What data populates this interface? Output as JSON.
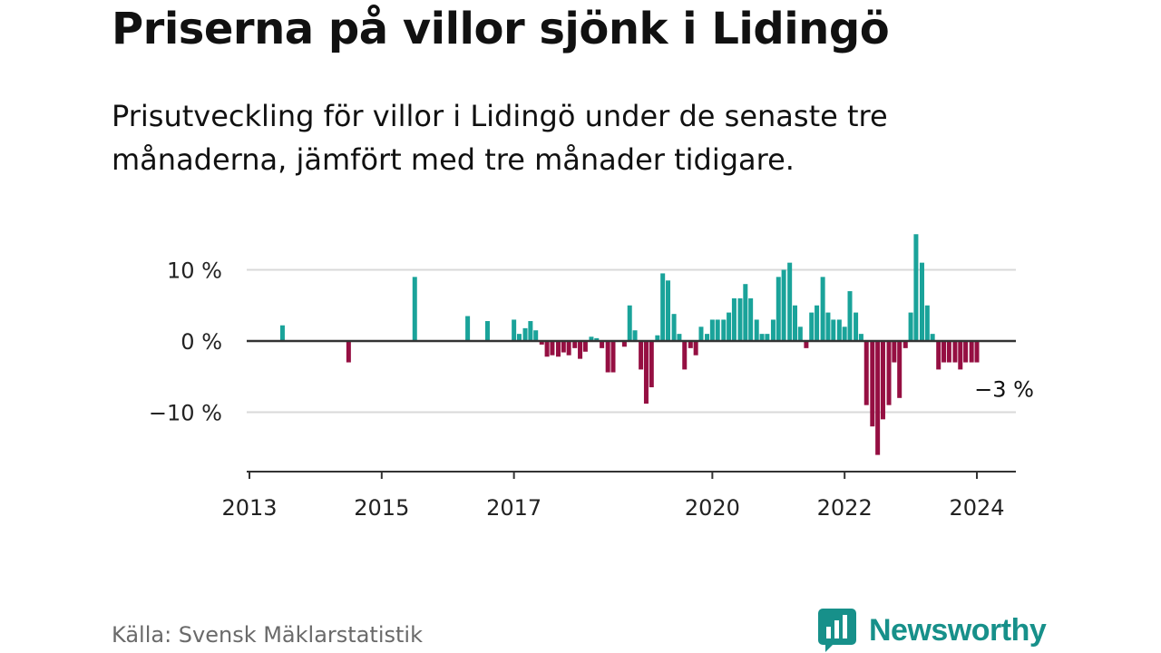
{
  "title": "Priserna på villor sjönk i Lidingö",
  "subtitle": "Prisutveckling för villor i Lidingö under de senaste tre månaderna, jämfört med tre månader tidigare.",
  "source": "Källa: Svensk Mäklarstatistik",
  "brand": "Newsworthy",
  "colors": {
    "positive": "#1aa39a",
    "negative": "#950f42",
    "grid": "#d9d9d9",
    "axis": "#333333",
    "brand": "#17908a"
  },
  "chart_data": {
    "type": "bar",
    "x_unit": "year (fractional)",
    "xlim": [
      2013,
      2024.6
    ],
    "ylim": [
      -16,
      15
    ],
    "yticks": [
      10,
      0,
      -10
    ],
    "ytick_labels": [
      "10 %",
      "0 %",
      "−10 %"
    ],
    "xticks": [
      2013,
      2015,
      2017,
      2020,
      2022,
      2024
    ],
    "xtick_labels": [
      "2013",
      "2015",
      "2017",
      "2020",
      "2022",
      "2024"
    ],
    "grid": true,
    "annotation": {
      "text": "−3 %",
      "x": 2024.0,
      "y": -3
    },
    "x": [
      2013.5,
      2014.5,
      2015.5,
      2016.3,
      2016.6,
      2017.0,
      2017.08,
      2017.17,
      2017.25,
      2017.33,
      2017.42,
      2017.5,
      2017.58,
      2017.67,
      2017.75,
      2017.83,
      2017.92,
      2018.0,
      2018.08,
      2018.17,
      2018.25,
      2018.33,
      2018.42,
      2018.5,
      2018.58,
      2018.67,
      2018.75,
      2018.83,
      2018.92,
      2019.0,
      2019.08,
      2019.17,
      2019.25,
      2019.33,
      2019.42,
      2019.5,
      2019.58,
      2019.67,
      2019.75,
      2019.83,
      2019.92,
      2020.0,
      2020.08,
      2020.17,
      2020.25,
      2020.33,
      2020.42,
      2020.5,
      2020.58,
      2020.67,
      2020.75,
      2020.83,
      2020.92,
      2021.0,
      2021.08,
      2021.17,
      2021.25,
      2021.33,
      2021.42,
      2021.5,
      2021.58,
      2021.67,
      2021.75,
      2021.83,
      2021.92,
      2022.0,
      2022.08,
      2022.17,
      2022.25,
      2022.33,
      2022.42,
      2022.5,
      2022.58,
      2022.67,
      2022.75,
      2022.83,
      2022.92,
      2023.0,
      2023.08,
      2023.17,
      2023.25,
      2023.33,
      2023.42,
      2023.5,
      2023.58,
      2023.67,
      2023.75,
      2023.83,
      2023.92,
      2024.0
    ],
    "values": [
      2.2,
      -3.0,
      9.0,
      3.5,
      2.8,
      3.0,
      1.0,
      1.8,
      2.8,
      1.5,
      -0.5,
      -2.2,
      -2.0,
      -2.2,
      -1.6,
      -2.0,
      -1.0,
      -2.5,
      -1.5,
      0.6,
      0.4,
      -1.0,
      -4.4,
      -4.4,
      0.0,
      -0.8,
      5.0,
      1.5,
      -4.0,
      -8.8,
      -6.5,
      0.8,
      9.5,
      8.5,
      3.8,
      1.0,
      -4.0,
      -1.0,
      -2.0,
      2.0,
      1.0,
      3.0,
      3.0,
      3.0,
      4.0,
      6.0,
      6.0,
      8.0,
      6.0,
      3.0,
      1.0,
      1.0,
      3.0,
      9.0,
      10.0,
      11.0,
      5.0,
      2.0,
      -1.0,
      4.0,
      5.0,
      9.0,
      4.0,
      3.0,
      3.0,
      2.0,
      7.0,
      4.0,
      1.0,
      -9.0,
      -12.0,
      -16.0,
      -11.0,
      -9.0,
      -3.0,
      -8.0,
      -1.0,
      4.0,
      15.0,
      11.0,
      5.0,
      1.0,
      -4.0,
      -3.0,
      -3.0,
      -3.0,
      -4.0,
      -3.0,
      -3.0,
      -3.0
    ]
  }
}
